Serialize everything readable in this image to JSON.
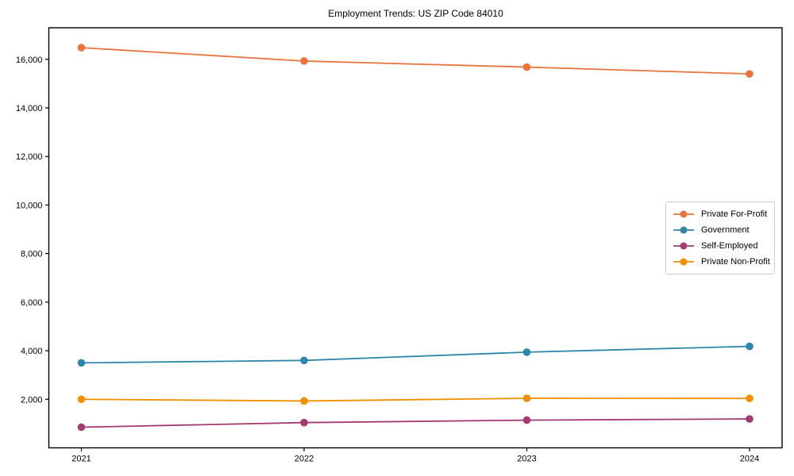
{
  "title": "Employment Trends: US ZIP Code 84010",
  "chart_data": {
    "type": "line",
    "title": "Employment Trends: US ZIP Code 84010",
    "categories": [
      "2021",
      "2022",
      "2023",
      "2024"
    ],
    "series": [
      {
        "name": "Private For-Profit",
        "color": "#E8743F",
        "values": [
          16480,
          15930,
          15680,
          15400
        ]
      },
      {
        "name": "Government",
        "color": "#2E86AB",
        "values": [
          3500,
          3600,
          3940,
          4180
        ]
      },
      {
        "name": "Self-Employed",
        "color": "#A23B72",
        "values": [
          850,
          1040,
          1140,
          1190
        ]
      },
      {
        "name": "Private Non-Profit",
        "color": "#F18F01",
        "values": [
          2000,
          1930,
          2040,
          2035
        ]
      }
    ],
    "xlabel": "",
    "ylabel": "",
    "ylim": [
      0,
      17300
    ],
    "yticks": [
      2000,
      4000,
      6000,
      8000,
      10000,
      12000,
      14000,
      16000
    ],
    "ytick_labels": [
      "2,000",
      "4,000",
      "6,000",
      "8,000",
      "10,000",
      "12,000",
      "14,000",
      "16,000"
    ],
    "grid": false,
    "legend_position": "center right",
    "axis_color": "#000000",
    "background": "#ffffff"
  }
}
